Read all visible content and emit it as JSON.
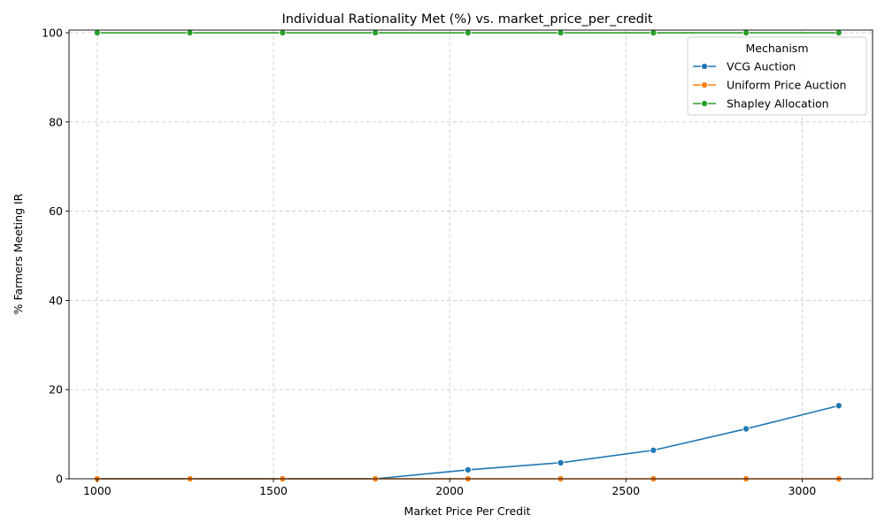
{
  "chart_data": {
    "type": "line",
    "title": "Individual Rationality Met (%) vs. market_price_per_credit",
    "xlabel": "Market Price Per Credit",
    "ylabel": "% Farmers Meeting IR",
    "xlim": [
      920,
      3200
    ],
    "ylim": [
      0,
      100.6
    ],
    "xticks": [
      1000,
      1500,
      2000,
      2500,
      3000
    ],
    "yticks": [
      0,
      20,
      40,
      60,
      80,
      100
    ],
    "grid": true,
    "legend": {
      "title": "Mechanism",
      "placement": "top-right"
    },
    "x": [
      1000,
      1263,
      1526,
      1789,
      2052,
      2315,
      2578,
      2841,
      3104
    ],
    "series": [
      {
        "name": "VCG Auction",
        "color": "#1f77b4",
        "values": [
          0,
          0,
          0,
          0,
          2.0,
          3.6,
          6.4,
          11.2,
          16.4
        ]
      },
      {
        "name": "Uniform Price Auction",
        "color": "#ff7f0e",
        "values": [
          0,
          0,
          0,
          0,
          0,
          0,
          0,
          0,
          0
        ]
      },
      {
        "name": "Shapley Allocation",
        "color": "#2ca02c",
        "values": [
          100,
          100,
          100,
          100,
          100,
          100,
          100,
          100,
          100
        ]
      }
    ]
  }
}
